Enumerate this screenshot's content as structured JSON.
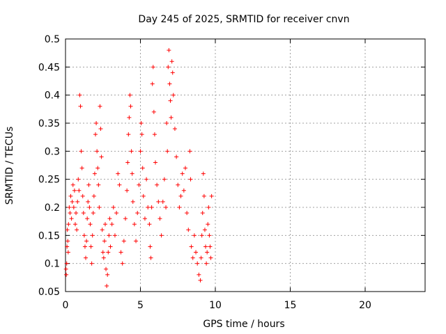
{
  "chart_data": {
    "type": "scatter",
    "title": "Day 245 of 2025, SRMTID for receiver cnvn",
    "xlabel": "GPS time / hours",
    "ylabel": "SRMTID / TECUs",
    "xlim": [
      0,
      24
    ],
    "ylim": [
      0.05,
      0.5
    ],
    "x_ticks": [
      "0",
      "5",
      "10",
      "15",
      "20"
    ],
    "y_ticks": [
      "0.05",
      "0.1",
      "0.15",
      "0.2",
      "0.25",
      "0.3",
      "0.35",
      "0.4",
      "0.45",
      "0.5"
    ],
    "grid": true,
    "marker": "+",
    "color": "#ff0000",
    "series": [
      {
        "name": "SRMTID",
        "points": [
          [
            0.03,
            0.09
          ],
          [
            0.05,
            0.08
          ],
          [
            0.08,
            0.1
          ],
          [
            0.1,
            0.13
          ],
          [
            0.12,
            0.16
          ],
          [
            0.15,
            0.14
          ],
          [
            0.18,
            0.12
          ],
          [
            0.2,
            0.17
          ],
          [
            0.25,
            0.2
          ],
          [
            0.3,
            0.19
          ],
          [
            0.35,
            0.22
          ],
          [
            0.4,
            0.18
          ],
          [
            0.45,
            0.21
          ],
          [
            0.5,
            0.24
          ],
          [
            0.55,
            0.2
          ],
          [
            0.6,
            0.23
          ],
          [
            0.65,
            0.17
          ],
          [
            0.7,
            0.19
          ],
          [
            0.75,
            0.16
          ],
          [
            0.8,
            0.21
          ],
          [
            0.85,
            0.25
          ],
          [
            0.9,
            0.23
          ],
          [
            0.95,
            0.4
          ],
          [
            1.0,
            0.38
          ],
          [
            1.05,
            0.3
          ],
          [
            1.1,
            0.27
          ],
          [
            1.15,
            0.22
          ],
          [
            1.2,
            0.19
          ],
          [
            1.25,
            0.15
          ],
          [
            1.3,
            0.13
          ],
          [
            1.35,
            0.11
          ],
          [
            1.4,
            0.14
          ],
          [
            1.45,
            0.18
          ],
          [
            1.5,
            0.21
          ],
          [
            1.55,
            0.24
          ],
          [
            1.6,
            0.2
          ],
          [
            1.65,
            0.17
          ],
          [
            1.7,
            0.13
          ],
          [
            1.75,
            0.1
          ],
          [
            1.8,
            0.15
          ],
          [
            1.85,
            0.19
          ],
          [
            1.9,
            0.22
          ],
          [
            1.95,
            0.26
          ],
          [
            2.0,
            0.33
          ],
          [
            2.05,
            0.35
          ],
          [
            2.1,
            0.3
          ],
          [
            2.15,
            0.27
          ],
          [
            2.2,
            0.24
          ],
          [
            2.25,
            0.2
          ],
          [
            2.3,
            0.38
          ],
          [
            2.35,
            0.34
          ],
          [
            2.4,
            0.29
          ],
          [
            2.45,
            0.16
          ],
          [
            2.5,
            0.12
          ],
          [
            2.55,
            0.11
          ],
          [
            2.6,
            0.14
          ],
          [
            2.65,
            0.17
          ],
          [
            2.7,
            0.09
          ],
          [
            2.75,
            0.06
          ],
          [
            2.8,
            0.08
          ],
          [
            2.85,
            0.12
          ],
          [
            2.9,
            0.15
          ],
          [
            2.95,
            0.18
          ],
          [
            3.0,
            0.13
          ],
          [
            3.1,
            0.17
          ],
          [
            3.2,
            0.2
          ],
          [
            3.3,
            0.15
          ],
          [
            3.4,
            0.19
          ],
          [
            3.5,
            0.26
          ],
          [
            3.6,
            0.24
          ],
          [
            3.7,
            0.12
          ],
          [
            3.8,
            0.1
          ],
          [
            3.9,
            0.14
          ],
          [
            4.0,
            0.18
          ],
          [
            4.1,
            0.23
          ],
          [
            4.15,
            0.28
          ],
          [
            4.2,
            0.33
          ],
          [
            4.25,
            0.36
          ],
          [
            4.3,
            0.4
          ],
          [
            4.35,
            0.38
          ],
          [
            4.4,
            0.3
          ],
          [
            4.45,
            0.26
          ],
          [
            4.5,
            0.21
          ],
          [
            4.6,
            0.17
          ],
          [
            4.7,
            0.14
          ],
          [
            4.8,
            0.19
          ],
          [
            4.9,
            0.24
          ],
          [
            5.0,
            0.3
          ],
          [
            5.05,
            0.35
          ],
          [
            5.1,
            0.33
          ],
          [
            5.15,
            0.27
          ],
          [
            5.2,
            0.22
          ],
          [
            5.3,
            0.18
          ],
          [
            5.4,
            0.25
          ],
          [
            5.5,
            0.2
          ],
          [
            5.6,
            0.17
          ],
          [
            5.65,
            0.13
          ],
          [
            5.7,
            0.11
          ],
          [
            5.75,
            0.2
          ],
          [
            5.8,
            0.42
          ],
          [
            5.85,
            0.45
          ],
          [
            5.9,
            0.37
          ],
          [
            5.95,
            0.33
          ],
          [
            6.0,
            0.28
          ],
          [
            6.1,
            0.24
          ],
          [
            6.2,
            0.21
          ],
          [
            6.3,
            0.18
          ],
          [
            6.4,
            0.15
          ],
          [
            6.5,
            0.21
          ],
          [
            6.6,
            0.25
          ],
          [
            6.7,
            0.2
          ],
          [
            6.75,
            0.35
          ],
          [
            6.8,
            0.3
          ],
          [
            6.85,
            0.45
          ],
          [
            6.9,
            0.48
          ],
          [
            6.95,
            0.42
          ],
          [
            7.0,
            0.39
          ],
          [
            7.05,
            0.36
          ],
          [
            7.1,
            0.46
          ],
          [
            7.15,
            0.44
          ],
          [
            7.2,
            0.4
          ],
          [
            7.3,
            0.34
          ],
          [
            7.4,
            0.29
          ],
          [
            7.5,
            0.24
          ],
          [
            7.6,
            0.2
          ],
          [
            7.7,
            0.22
          ],
          [
            7.8,
            0.26
          ],
          [
            7.9,
            0.23
          ],
          [
            8.0,
            0.27
          ],
          [
            8.1,
            0.19
          ],
          [
            8.2,
            0.16
          ],
          [
            8.3,
            0.3
          ],
          [
            8.35,
            0.25
          ],
          [
            8.4,
            0.13
          ],
          [
            8.5,
            0.11
          ],
          [
            8.6,
            0.15
          ],
          [
            8.7,
            0.12
          ],
          [
            8.8,
            0.1
          ],
          [
            8.9,
            0.08
          ],
          [
            9.0,
            0.07
          ],
          [
            9.05,
            0.11
          ],
          [
            9.1,
            0.15
          ],
          [
            9.15,
            0.19
          ],
          [
            9.2,
            0.26
          ],
          [
            9.25,
            0.22
          ],
          [
            9.3,
            0.16
          ],
          [
            9.35,
            0.13
          ],
          [
            9.4,
            0.1
          ],
          [
            9.45,
            0.12
          ],
          [
            9.5,
            0.17
          ],
          [
            9.55,
            0.2
          ],
          [
            9.6,
            0.15
          ],
          [
            9.65,
            0.13
          ],
          [
            9.7,
            0.11
          ],
          [
            9.75,
            0.22
          ]
        ]
      }
    ]
  }
}
